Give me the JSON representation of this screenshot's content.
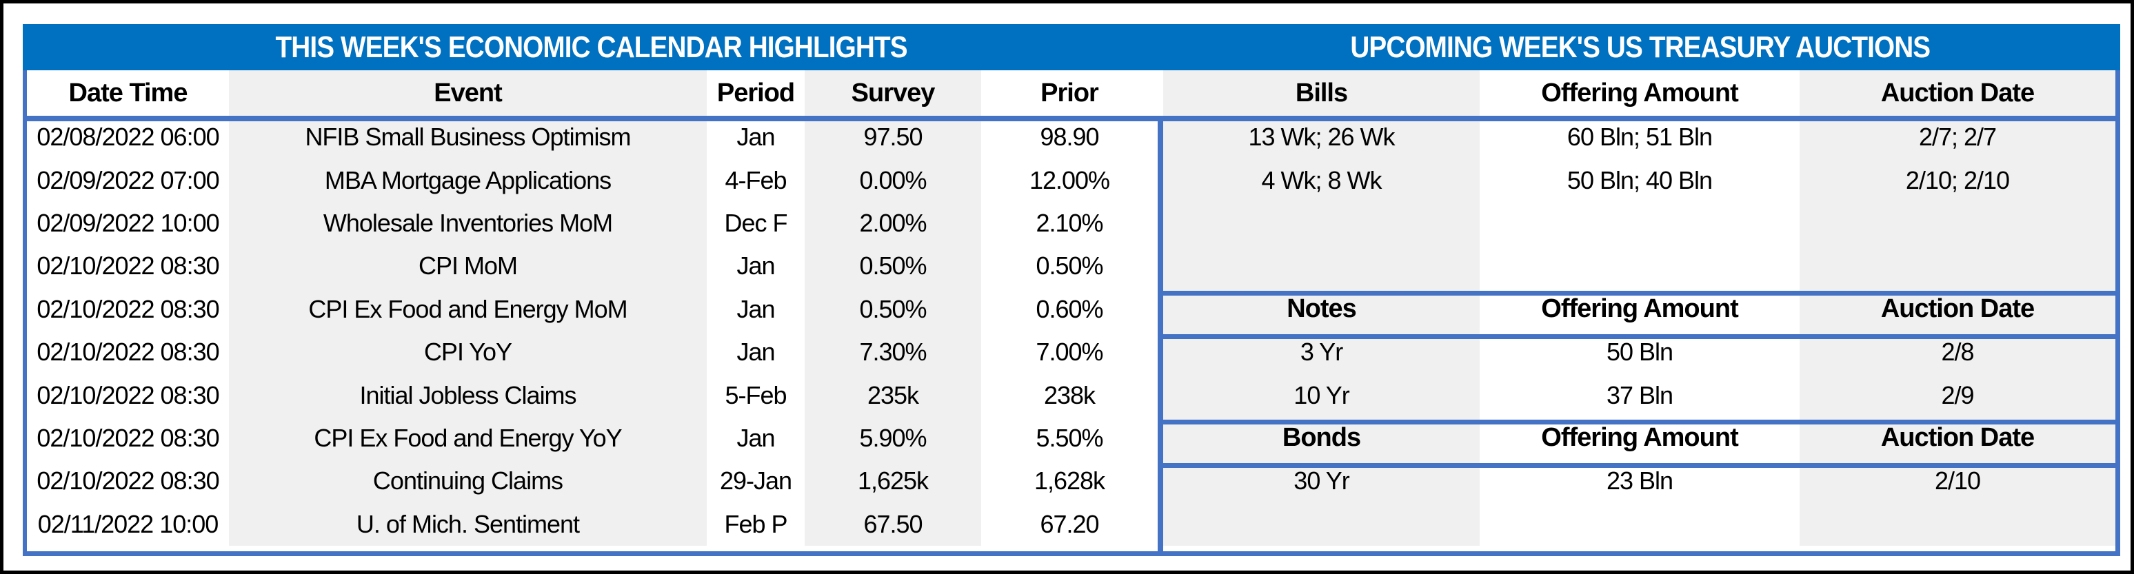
{
  "colors": {
    "title_bar_blue": "#0070C0",
    "rule_blue": "#4472C4",
    "shaded_column_gray": "#F0F0F0",
    "frame_black": "#000000",
    "title_text": "#FFFFFF",
    "body_text": "#000000"
  },
  "calendar": {
    "title": "THIS WEEK'S ECONOMIC CALENDAR HIGHLIGHTS",
    "headers": {
      "date": "Date Time",
      "event": "Event",
      "period": "Period",
      "survey": "Survey",
      "prior": "Prior"
    },
    "rows": [
      {
        "date": "02/08/2022 06:00",
        "event": "NFIB Small Business Optimism",
        "period": "Jan",
        "survey": "97.50",
        "prior": "98.90"
      },
      {
        "date": "02/09/2022 07:00",
        "event": "MBA Mortgage Applications",
        "period": "4-Feb",
        "survey": "0.00%",
        "prior": "12.00%"
      },
      {
        "date": "02/09/2022 10:00",
        "event": "Wholesale Inventories MoM",
        "period": "Dec F",
        "survey": "2.00%",
        "prior": "2.10%"
      },
      {
        "date": "02/10/2022 08:30",
        "event": "CPI MoM",
        "period": "Jan",
        "survey": "0.50%",
        "prior": "0.50%"
      },
      {
        "date": "02/10/2022 08:30",
        "event": "CPI Ex Food and Energy MoM",
        "period": "Jan",
        "survey": "0.50%",
        "prior": "0.60%"
      },
      {
        "date": "02/10/2022 08:30",
        "event": "CPI YoY",
        "period": "Jan",
        "survey": "7.30%",
        "prior": "7.00%"
      },
      {
        "date": "02/10/2022 08:30",
        "event": "Initial Jobless Claims",
        "period": "5-Feb",
        "survey": "235k",
        "prior": "238k"
      },
      {
        "date": "02/10/2022 08:30",
        "event": "CPI Ex Food and Energy YoY",
        "period": "Jan",
        "survey": "5.90%",
        "prior": "5.50%"
      },
      {
        "date": "02/10/2022 08:30",
        "event": "Continuing Claims",
        "period": "29-Jan",
        "survey": "1,625k",
        "prior": "1,628k"
      },
      {
        "date": "02/11/2022 10:00",
        "event": "U. of Mich. Sentiment",
        "period": "Feb P",
        "survey": "67.50",
        "prior": "67.20"
      }
    ]
  },
  "auctions": {
    "title": "UPCOMING WEEK'S US TREASURY AUCTIONS",
    "sections": [
      {
        "headers": {
          "type": "Bills",
          "offering": "Offering Amount",
          "date": "Auction Date"
        },
        "rows": [
          {
            "type": "13 Wk; 26 Wk",
            "offering": "60 Bln; 51 Bln",
            "date": "2/7; 2/7"
          },
          {
            "type": "4 Wk; 8 Wk",
            "offering": "50 Bln; 40 Bln",
            "date": "2/10; 2/10"
          }
        ]
      },
      {
        "headers": {
          "type": "Notes",
          "offering": "Offering Amount",
          "date": "Auction Date"
        },
        "rows": [
          {
            "type": "3 Yr",
            "offering": "50 Bln",
            "date": "2/8"
          },
          {
            "type": "10 Yr",
            "offering": "37 Bln",
            "date": "2/9"
          }
        ]
      },
      {
        "headers": {
          "type": "Bonds",
          "offering": "Offering Amount",
          "date": "Auction Date"
        },
        "rows": [
          {
            "type": "30 Yr",
            "offering": "23 Bln",
            "date": "2/10"
          }
        ]
      }
    ]
  }
}
